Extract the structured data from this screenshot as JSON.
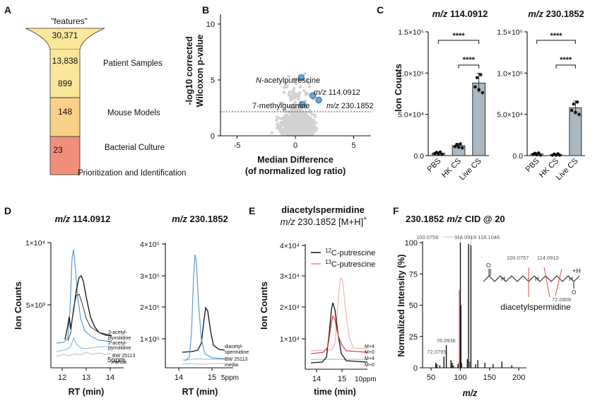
{
  "panels": {
    "A": {
      "letter": "A",
      "header": "\"features\"",
      "tiers": [
        {
          "value": "30,371",
          "color": "#fbe79a"
        },
        {
          "value": "13,838",
          "color": "#fbe79a"
        },
        {
          "value": "899",
          "color": "#fbe79a"
        },
        {
          "value": "148",
          "color": "#f8d088"
        },
        {
          "value": "23",
          "color": "#ef8f7c"
        }
      ],
      "labels": [
        "Patient Samples",
        "Mouse Models",
        "Bacterial Culture",
        "Prioritization and Identification"
      ]
    },
    "B": {
      "letter": "B",
      "ylabel_1": "-log10 corrected",
      "ylabel_2": "Wilcoxon p-value",
      "xlabel_1": "Median Difference",
      "xlabel_2": "(of normalized log ratio)",
      "xticks": [
        "-5",
        "0",
        "5"
      ],
      "yticks": [
        "0",
        "5",
        "10"
      ],
      "annotations": [
        {
          "label_italic": "N",
          "label_rest": "-acetylputrescine",
          "x": 0.5,
          "y": 5.2
        },
        {
          "label_italic": "m/z",
          "label_rest": " 114.0912",
          "x": 1.5,
          "y": 3.6
        },
        {
          "label_italic": "",
          "label_rest": "7-methylguanine",
          "x": 0.6,
          "y": 2.8
        },
        {
          "label_italic": "m/z",
          "label_rest": " 230.1852",
          "x": 2.0,
          "y": 3.2
        }
      ],
      "threshold": 2.1
    },
    "C": {
      "letter": "C",
      "ylabel": "Ion Counts",
      "groups": [
        "PBS",
        "HK CS",
        "Live CS"
      ],
      "stars": "****",
      "charts": [
        {
          "title_italic": "m/z",
          "title_rest": " 114.0912",
          "yticks": [
            "0.0",
            "5.0×10⁴",
            "1.0×10⁵",
            "1.5×10⁵"
          ],
          "means": [
            3000,
            12000,
            88000
          ]
        },
        {
          "title_italic": "m/z",
          "title_rest": " 230.1852",
          "yticks": [
            "0.0",
            "5.0×10⁴",
            "1.0×10⁵",
            "1.5×10⁵"
          ],
          "means": [
            2000,
            1000,
            58000
          ]
        }
      ]
    },
    "D": {
      "letter": "D",
      "ylabel": "Ion Counts",
      "xlabel": "RT (min)",
      "ppm": "5ppm",
      "charts": [
        {
          "title_italic": "m/z",
          "title_rest": " 114.0912",
          "yticks": [
            "1×10⁴",
            "5×10³"
          ],
          "xticks": [
            "12",
            "13",
            "14"
          ],
          "legend": [
            "3-acetyl-",
            "pyrrolidine",
            "2-acetyl-",
            "pyrrolidine",
            "BW 25113",
            "media"
          ]
        },
        {
          "title_italic": "m/z",
          "title_rest": " 230.1852",
          "yticks": [
            "4×10⁵",
            "3×10⁵",
            "2×10⁵",
            "1×10⁵"
          ],
          "xticks": [
            "14",
            "15"
          ],
          "legend": [
            "diacetyl-",
            "spermidine",
            "BW 25113",
            "media"
          ]
        }
      ]
    },
    "E": {
      "letter": "E",
      "title_1": "diacetylspermidine",
      "title_2_italic": "m/z",
      "title_2_rest": " 230.1852 [M+H]",
      "title_sup": "+",
      "ylabel": "Ion Counts",
      "xlabel": "time (min)",
      "ppm": "10ppm",
      "yticks": [
        "4×10⁴",
        "3×10⁴",
        "2×10⁴",
        "1×10⁴"
      ],
      "xticks": [
        "14",
        "15"
      ],
      "legend": [
        {
          "sup": "12",
          "rest": "C-putrescine",
          "color": "#111111"
        },
        {
          "sup": "13",
          "rest": "C-putrescine",
          "color": "#ee8a8a"
        }
      ],
      "trace_labels": [
        "M+4",
        "M+0",
        "M+4",
        "M+0"
      ]
    },
    "F": {
      "letter": "F",
      "title_1": "230.1852",
      "title_italic": "m/z",
      "title_2": "CID @ 20",
      "ylabel": "Normalized Intensity (%)",
      "xlabel": "m/z",
      "yticks": [
        "0",
        "25",
        "50",
        "75",
        "100"
      ],
      "xticks": [
        "50",
        "100",
        "150",
        "200"
      ],
      "peak_labels": [
        "100.0759",
        "114.0913",
        "118.1046",
        "76.0936",
        "72.0795"
      ],
      "structure_labels": [
        "100.0757",
        "114.0913",
        "72.0808",
        "+H"
      ],
      "compound": "diacetylspermidine"
    }
  }
}
